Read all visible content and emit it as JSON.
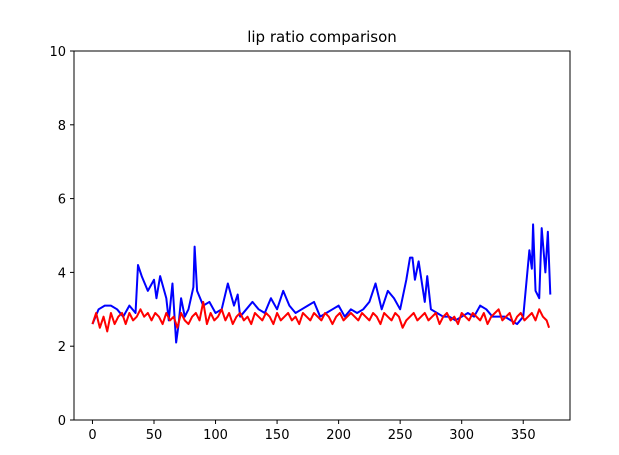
{
  "chart_data": {
    "type": "line",
    "title": "lip ratio comparison",
    "xlabel": "",
    "ylabel": "",
    "xlim": [
      -15,
      388
    ],
    "ylim": [
      0,
      10
    ],
    "x_ticks": [
      0,
      50,
      100,
      150,
      200,
      250,
      300,
      350
    ],
    "y_ticks": [
      0,
      2,
      4,
      6,
      8,
      10
    ],
    "grid": false,
    "legend": "none",
    "series": [
      {
        "color": "#0000ff",
        "x": [
          0,
          5,
          10,
          15,
          20,
          25,
          30,
          35,
          37,
          40,
          45,
          50,
          52,
          55,
          60,
          62,
          65,
          68,
          70,
          72,
          75,
          78,
          82,
          83,
          85,
          90,
          95,
          100,
          105,
          110,
          115,
          118,
          120,
          125,
          130,
          135,
          140,
          145,
          150,
          155,
          160,
          165,
          170,
          175,
          180,
          185,
          190,
          195,
          200,
          205,
          210,
          215,
          220,
          225,
          230,
          235,
          240,
          245,
          250,
          255,
          258,
          260,
          262,
          265,
          270,
          272,
          275,
          280,
          285,
          290,
          295,
          300,
          305,
          310,
          315,
          320,
          325,
          330,
          335,
          340,
          345,
          350,
          355,
          357,
          358,
          360,
          363,
          365,
          368,
          370,
          372
        ],
        "y": [
          2.6,
          3.0,
          3.1,
          3.1,
          3.0,
          2.8,
          3.1,
          2.9,
          4.2,
          3.9,
          3.5,
          3.8,
          3.3,
          3.9,
          3.3,
          2.7,
          3.7,
          2.1,
          2.6,
          3.3,
          2.8,
          3.0,
          3.6,
          4.7,
          3.5,
          3.1,
          3.2,
          2.9,
          3.0,
          3.7,
          3.1,
          3.4,
          2.8,
          3.0,
          3.2,
          3.0,
          2.9,
          3.3,
          3.0,
          3.5,
          3.1,
          2.9,
          3.0,
          3.1,
          3.2,
          2.8,
          2.9,
          3.0,
          3.1,
          2.8,
          3.0,
          2.9,
          3.0,
          3.2,
          3.7,
          3.0,
          3.5,
          3.3,
          3.0,
          3.8,
          4.4,
          4.4,
          3.8,
          4.3,
          3.2,
          3.9,
          3.0,
          2.9,
          2.8,
          2.8,
          2.7,
          2.8,
          2.9,
          2.8,
          3.1,
          3.0,
          2.8,
          2.8,
          2.8,
          2.7,
          2.6,
          2.8,
          4.6,
          4.1,
          5.3,
          3.5,
          3.3,
          5.2,
          4.0,
          5.1,
          3.4
        ]
      },
      {
        "color": "#ff0000",
        "x": [
          0,
          3,
          6,
          9,
          12,
          15,
          18,
          21,
          24,
          27,
          30,
          33,
          36,
          39,
          42,
          45,
          48,
          51,
          54,
          57,
          60,
          63,
          66,
          69,
          72,
          75,
          78,
          81,
          84,
          87,
          90,
          93,
          96,
          99,
          102,
          105,
          108,
          111,
          114,
          117,
          120,
          123,
          126,
          129,
          132,
          135,
          138,
          141,
          144,
          147,
          150,
          153,
          156,
          159,
          162,
          165,
          168,
          171,
          174,
          177,
          180,
          183,
          186,
          189,
          192,
          195,
          198,
          201,
          204,
          207,
          210,
          213,
          216,
          219,
          222,
          225,
          228,
          231,
          234,
          237,
          240,
          243,
          246,
          249,
          252,
          255,
          258,
          261,
          264,
          267,
          270,
          273,
          276,
          279,
          282,
          285,
          288,
          291,
          294,
          297,
          300,
          303,
          306,
          309,
          312,
          315,
          318,
          321,
          324,
          327,
          330,
          333,
          336,
          339,
          342,
          345,
          348,
          351,
          354,
          357,
          360,
          363,
          366,
          369,
          371
        ],
        "y": [
          2.6,
          2.9,
          2.5,
          2.8,
          2.4,
          2.9,
          2.6,
          2.8,
          2.9,
          2.6,
          2.9,
          2.7,
          2.8,
          3.0,
          2.8,
          2.9,
          2.7,
          2.9,
          2.8,
          2.6,
          2.9,
          2.7,
          2.8,
          2.5,
          2.9,
          2.7,
          2.6,
          2.8,
          2.9,
          2.7,
          3.2,
          2.6,
          2.9,
          2.7,
          2.8,
          3.0,
          2.7,
          2.9,
          2.6,
          2.8,
          2.9,
          2.7,
          2.8,
          2.6,
          2.9,
          2.8,
          2.7,
          2.9,
          2.8,
          2.6,
          2.9,
          2.7,
          2.8,
          2.9,
          2.7,
          2.8,
          2.6,
          2.9,
          2.8,
          2.7,
          2.9,
          2.8,
          2.7,
          2.9,
          2.8,
          2.6,
          2.8,
          2.9,
          2.7,
          2.8,
          2.9,
          2.8,
          2.7,
          2.9,
          2.8,
          2.7,
          2.9,
          2.8,
          2.6,
          2.9,
          2.8,
          2.7,
          2.9,
          2.8,
          2.5,
          2.7,
          2.8,
          2.9,
          2.7,
          2.8,
          2.9,
          2.7,
          2.8,
          2.9,
          2.6,
          2.8,
          2.9,
          2.7,
          2.8,
          2.6,
          2.9,
          2.8,
          2.7,
          2.9,
          2.8,
          2.7,
          2.9,
          2.6,
          2.8,
          2.9,
          3.0,
          2.7,
          2.8,
          2.9,
          2.6,
          2.8,
          2.9,
          2.7,
          2.8,
          2.9,
          2.7,
          3.0,
          2.8,
          2.7,
          2.5
        ]
      }
    ]
  }
}
